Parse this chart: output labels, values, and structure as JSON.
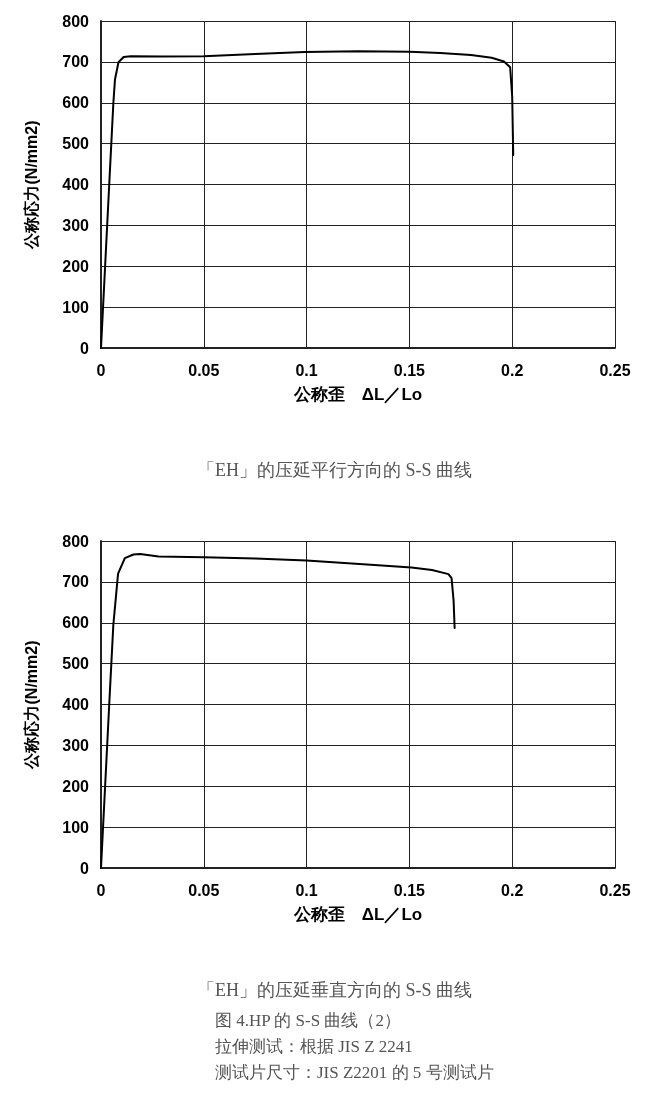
{
  "chart_data": [
    {
      "type": "line",
      "title": "「EH」的压延平行方向的 S-S 曲线",
      "xlabel": "公称歪　ΔL／Lo",
      "ylabel": "公称応力(N/mm2)",
      "series": [
        {
          "color": "#000000",
          "x": [
            0,
            0.002,
            0.004,
            0.006,
            0.0068,
            0.0085,
            0.011,
            0.0144,
            0.03,
            0.05,
            0.075,
            0.099,
            0.125,
            0.15,
            0.165,
            0.18,
            0.19,
            0.196,
            0.199,
            0.2,
            0.2005
          ],
          "values": [
            0,
            200,
            400,
            598,
            657,
            699,
            712,
            714,
            713,
            714,
            719,
            724,
            726,
            725,
            722,
            717,
            710,
            701,
            687,
            615,
            472
          ]
        }
      ],
      "xlim": [
        0,
        0.25
      ],
      "xticks": [
        0,
        0.05,
        0.1,
        0.15,
        0.2,
        0.25
      ],
      "ylim": [
        0,
        800
      ],
      "yticks": [
        0,
        100,
        200,
        300,
        400,
        500,
        600,
        700,
        800
      ],
      "grid": true,
      "marker": "none",
      "line_style": "solid"
    },
    {
      "type": "line",
      "title": "「EH」的压延垂直方向的 S-S 曲线",
      "xlabel": "公称歪　ΔL／Lo",
      "ylabel": "公称応力(N/mm2)",
      "series": [
        {
          "color": "#000000",
          "x": [
            0,
            0.002,
            0.004,
            0.006,
            0.0083,
            0.0116,
            0.0158,
            0.019,
            0.028,
            0.05,
            0.075,
            0.1,
            0.133,
            0.151,
            0.161,
            0.169,
            0.1705,
            0.1715,
            0.172
          ],
          "values": [
            0,
            200,
            400,
            595,
            720,
            758,
            767,
            768,
            762,
            760,
            757,
            752,
            741,
            735,
            729,
            719,
            709,
            654,
            587
          ]
        }
      ],
      "xlim": [
        0,
        0.25
      ],
      "xticks": [
        0,
        0.05,
        0.1,
        0.15,
        0.2,
        0.25
      ],
      "ylim": [
        0,
        800
      ],
      "yticks": [
        0,
        100,
        200,
        300,
        400,
        500,
        600,
        700,
        800
      ],
      "grid": true,
      "marker": "none",
      "line_style": "solid",
      "annotations": [
        "图 4.HP 的 S-S 曲线（2）",
        "拉伸测试：根据 JIS Z 2241",
        "测试片尺寸：JIS Z2201 的 5 号测试片"
      ]
    }
  ]
}
